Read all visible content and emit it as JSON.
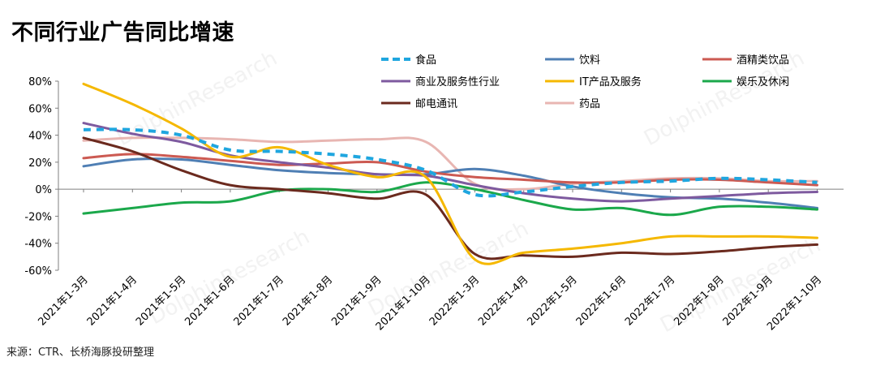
{
  "header": {
    "title": "不同行业广告同比增速"
  },
  "footer": {
    "source": "来源：CTR、长桥海豚投研整理"
  },
  "chart_data": {
    "type": "line",
    "title": "不同行业广告同比增速",
    "xlabel": "",
    "ylabel": "",
    "ylim": [
      -60,
      80
    ],
    "yticks": [
      -60,
      -40,
      -20,
      0,
      20,
      40,
      60,
      80
    ],
    "ytick_format": "percent",
    "grid": false,
    "legend_position": "top",
    "categories": [
      "2021年1-3月",
      "2021年1-4月",
      "2021年1-5月",
      "2021年1-6月",
      "2021年1-7月",
      "2021年1-8月",
      "2021年1-9月",
      "2021年1-10月",
      "2022年1-3月",
      "2022年1-4月",
      "2022年1-5月",
      "2022年1-6月",
      "2022年1-7月",
      "2022年1-8月",
      "2022年1-9月",
      "2022年1-10月"
    ],
    "series": [
      {
        "name": "食品",
        "color": "#1fa6df",
        "dashed": true,
        "values": [
          44,
          44,
          40,
          29,
          28,
          26,
          22,
          14,
          -4,
          -2,
          2,
          5,
          6,
          8,
          7,
          5
        ]
      },
      {
        "name": "饮料",
        "color": "#4f7fb4",
        "dashed": false,
        "values": [
          17,
          22,
          22,
          18,
          14,
          12,
          11,
          11,
          15,
          10,
          2,
          -3,
          -6,
          -7,
          -10,
          -14
        ]
      },
      {
        "name": "酒精类饮品",
        "color": "#cc5a52",
        "dashed": false,
        "values": [
          23,
          26,
          24,
          21,
          18,
          19,
          20,
          13,
          9,
          7,
          5,
          5,
          7,
          7,
          5,
          3
        ]
      },
      {
        "name": "商业及服务性行业",
        "color": "#7e5a9f",
        "dashed": false,
        "values": [
          49,
          41,
          35,
          25,
          20,
          16,
          11,
          10,
          3,
          -3,
          -7,
          -9,
          -7,
          -5,
          -3,
          -2
        ]
      },
      {
        "name": "IT产品及服务",
        "color": "#f5b800",
        "dashed": false,
        "values": [
          78,
          63,
          45,
          24,
          31,
          18,
          9,
          9,
          -52,
          -47,
          -44,
          -40,
          -35,
          -35,
          -35,
          -36
        ]
      },
      {
        "name": "娱乐及休闲",
        "color": "#1ba84b",
        "dashed": false,
        "values": [
          -18,
          -14,
          -10,
          -9,
          -1,
          0,
          -2,
          5,
          0,
          -8,
          -15,
          -14,
          -19,
          -13,
          -13,
          -15
        ]
      },
      {
        "name": "邮电通讯",
        "color": "#6b2a1e",
        "dashed": false,
        "values": [
          38,
          28,
          14,
          3,
          0,
          -3,
          -7,
          -4,
          -48,
          -49,
          -50,
          -47,
          -48,
          -46,
          -43,
          -41
        ]
      },
      {
        "name": "药品",
        "color": "#e8b6b2",
        "dashed": false,
        "values": [
          36,
          38,
          38,
          37,
          35,
          36,
          37,
          35,
          4,
          0,
          4,
          6,
          8,
          8,
          6,
          6
        ]
      }
    ]
  }
}
